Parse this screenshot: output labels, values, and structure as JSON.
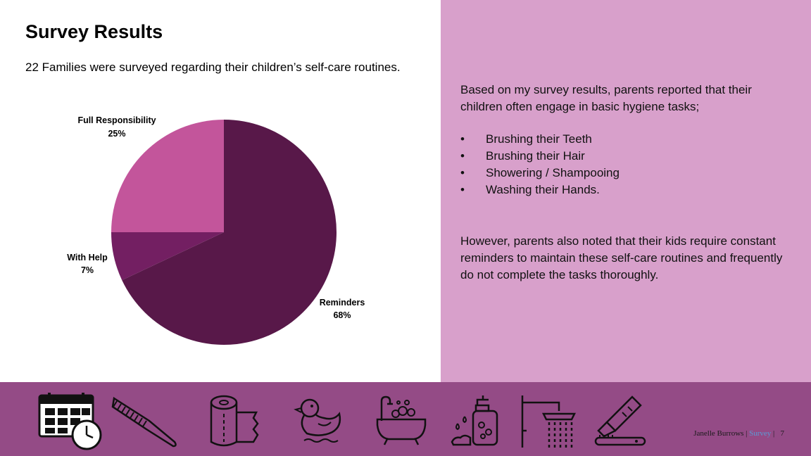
{
  "slide": {
    "title": "Survey Results",
    "subtitle": "22 Families were surveyed regarding their children’s self-care routines."
  },
  "chart_data": {
    "type": "pie",
    "slices": [
      {
        "label": "Reminders",
        "value": 68,
        "value_label": "68%",
        "color": "#581849"
      },
      {
        "label": "With Help",
        "value": 7,
        "value_label": "7%",
        "color": "#731f62"
      },
      {
        "label": "Full Responsibility",
        "value": 25,
        "value_label": "25%",
        "color": "#c3559b"
      }
    ],
    "start_angle_deg": 0,
    "direction": "clockwise"
  },
  "right_panel": {
    "intro": "Based on my survey results, parents reported that their children often engage in basic hygiene tasks;",
    "bullet_char": "•",
    "bullets": [
      "Brushing their Teeth",
      "Brushing their Hair",
      "Showering / Shampooing",
      "Washing their Hands."
    ],
    "conclusion": "However, parents also noted that their kids require constant reminders to maintain these self-care routines and frequently do not complete the tasks thoroughly."
  },
  "icons": [
    "calendar-clock-icon",
    "comb-icon",
    "toilet-paper-icon",
    "rubber-duck-icon",
    "bathtub-icon",
    "hand-soap-icon",
    "shower-icon",
    "toothbrush-icon"
  ],
  "footer": {
    "author": "Janelle Burrows",
    "sep": "|",
    "section": "Survey",
    "page": "7"
  },
  "colors": {
    "panel": "#d8a0cb",
    "band": "#944b86"
  }
}
